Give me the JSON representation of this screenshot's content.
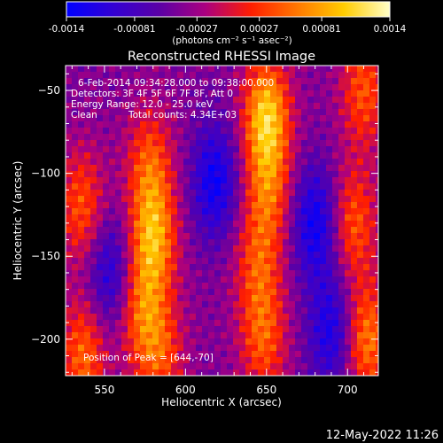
{
  "chart_data": {
    "type": "heatmap",
    "title": "Reconstructed RHESSI Image",
    "xlabel": "Heliocentric X (arcsec)",
    "ylabel": "Heliocentric Y (arcsec)",
    "xlim": [
      526,
      719
    ],
    "ylim": [
      -222,
      -35
    ],
    "x_ticks": [
      550,
      600,
      650,
      700
    ],
    "y_ticks": [
      -50,
      -100,
      -150,
      -200
    ],
    "colorbar": {
      "min": -0.0014,
      "max": 0.0014,
      "ticks": [
        "-0.0014",
        "-0.00081",
        "-0.00027",
        "0.00027",
        "0.00081",
        "0.0014"
      ],
      "unit_label": "(photons cm⁻² s⁻¹ asec⁻²)",
      "colormap": [
        "#0000ff",
        "#3200d4",
        "#5a00a6",
        "#aa0080",
        "#ff1e00",
        "#ff7800",
        "#ffcc00",
        "#ffffc8"
      ]
    },
    "annotations": {
      "time": "6-Feb-2014 09:34:28.000 to 09:38:00.000",
      "detectors": "Detectors: 3F 4F 5F 6F 7F 8F, Att 0",
      "energy": "Energy Range: 12.0 - 25.0 keV",
      "clean": "Clean",
      "counts": "Total counts: 4.34E+03",
      "peak": "Position of Peak = [644,-70]"
    },
    "features": [
      {
        "x": 650,
        "y": -65,
        "value": 0.0014
      },
      {
        "x": 651,
        "y": -110,
        "value": 0.0008
      },
      {
        "x": 645,
        "y": -155,
        "value": 0.0007
      },
      {
        "x": 648,
        "y": -200,
        "value": 0.0008
      },
      {
        "x": 578,
        "y": -95,
        "value": 0.0008
      },
      {
        "x": 580,
        "y": -140,
        "value": 0.0012
      },
      {
        "x": 573,
        "y": -185,
        "value": 0.0008
      },
      {
        "x": 585,
        "y": -210,
        "value": 0.0007
      },
      {
        "x": 536,
        "y": -120,
        "value": 0.0008
      },
      {
        "x": 537,
        "y": -210,
        "value": 0.0009
      },
      {
        "x": 710,
        "y": -50,
        "value": 0.0008
      },
      {
        "x": 704,
        "y": -130,
        "value": 0.0008
      },
      {
        "x": 712,
        "y": -200,
        "value": 0.001
      },
      {
        "x": 618,
        "y": -105,
        "value": -0.0009
      },
      {
        "x": 680,
        "y": -130,
        "value": -0.0009
      },
      {
        "x": 690,
        "y": -195,
        "value": -0.0008
      },
      {
        "x": 553,
        "y": -160,
        "value": -0.0007
      }
    ]
  },
  "footer": {
    "date": "12-May-2022 11:26"
  }
}
